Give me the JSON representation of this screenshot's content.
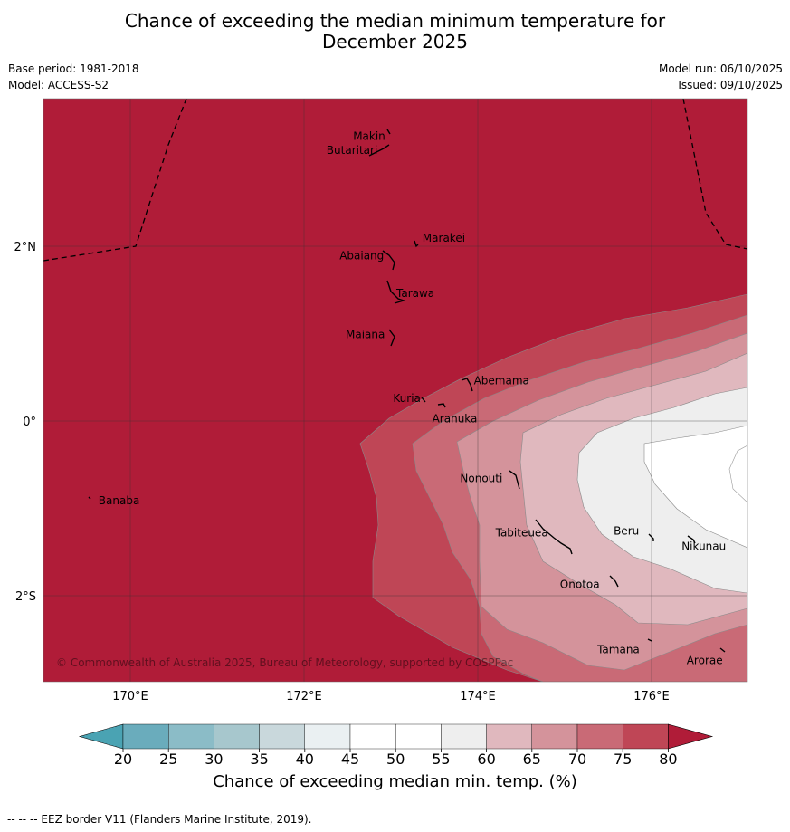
{
  "title": {
    "line1": "Chance of exceeding the median minimum temperature for",
    "line2": "December 2025"
  },
  "meta": {
    "base_period": "Base period: 1981-2018",
    "model": "Model: ACCESS-S2",
    "model_run": "Model run: 06/10/2025",
    "issued": "Issued: 09/10/2025"
  },
  "axes": {
    "lat_labels": [
      {
        "lat": 2,
        "text": "2°N"
      },
      {
        "lat": 0,
        "text": "0°"
      },
      {
        "lat": -2,
        "text": "2°S"
      }
    ],
    "lon_labels": [
      {
        "lon": 170,
        "text": "170°E"
      },
      {
        "lon": 172,
        "text": "172°E"
      },
      {
        "lon": 174,
        "text": "174°E"
      },
      {
        "lon": 176,
        "text": "176°E"
      }
    ],
    "lon_range": [
      169.0,
      177.1
    ],
    "lat_range": [
      -3.0,
      3.7
    ]
  },
  "islands": [
    {
      "name": "Makin",
      "lon": 172.95,
      "lat": 3.3
    },
    {
      "name": "Butaritari",
      "lon": 172.8,
      "lat": 3.15
    },
    {
      "name": "Marakei",
      "lon": 173.3,
      "lat": 2.0
    },
    {
      "name": "Abaiang",
      "lon": 172.95,
      "lat": 1.85
    },
    {
      "name": "Tarawa",
      "lon": 173.0,
      "lat": 1.4
    },
    {
      "name": "Maiana",
      "lon": 173.0,
      "lat": 0.95
    },
    {
      "name": "Abemama",
      "lon": 173.85,
      "lat": 0.4
    },
    {
      "name": "Kuria",
      "lon": 173.4,
      "lat": 0.22
    },
    {
      "name": "Aranuka",
      "lon": 173.6,
      "lat": 0.17
    },
    {
      "name": "Banaba",
      "lon": 169.55,
      "lat": -0.87
    },
    {
      "name": "Nonouti",
      "lon": 174.4,
      "lat": -0.65
    },
    {
      "name": "Tabiteuea",
      "lon": 174.85,
      "lat": -1.3
    },
    {
      "name": "Beru",
      "lon": 175.98,
      "lat": -1.32
    },
    {
      "name": "Nikunau",
      "lon": 176.45,
      "lat": -1.35
    },
    {
      "name": "Onotoa",
      "lon": 175.55,
      "lat": -1.8
    },
    {
      "name": "Tamana",
      "lon": 175.98,
      "lat": -2.5
    },
    {
      "name": "Arorae",
      "lon": 176.82,
      "lat": -2.65
    }
  ],
  "copyright": "© Commonwealth of Australia 2025, Bureau of Meteorology, supported by COSPPac",
  "colorbar": {
    "ticks": [
      "20",
      "25",
      "30",
      "35",
      "40",
      "45",
      "50",
      "55",
      "60",
      "65",
      "70",
      "75",
      "80"
    ],
    "colors": [
      "#6aacbc",
      "#8bbcc7",
      "#a7c7cd",
      "#c9d8dc",
      "#eaf0f2",
      "#ffffff",
      "#ffffff",
      "#eeeeee",
      "#e0b8be",
      "#d4939b",
      "#c96a76",
      "#bf4656"
    ],
    "under_color": "#4aa3b3",
    "over_color": "#b01c38",
    "label": "Chance of exceeding median min. temp. (%)"
  },
  "field_colors": {
    "c80": "#b01c38",
    "c75": "#bf4656",
    "c70": "#c96a76",
    "c65": "#d4939b",
    "c60": "#e0b8be",
    "c55": "#eeeeee",
    "c50": "#ffffff"
  },
  "footer": "-- -- -- EEZ border V11 (Flanders Marine Institute, 2019)."
}
